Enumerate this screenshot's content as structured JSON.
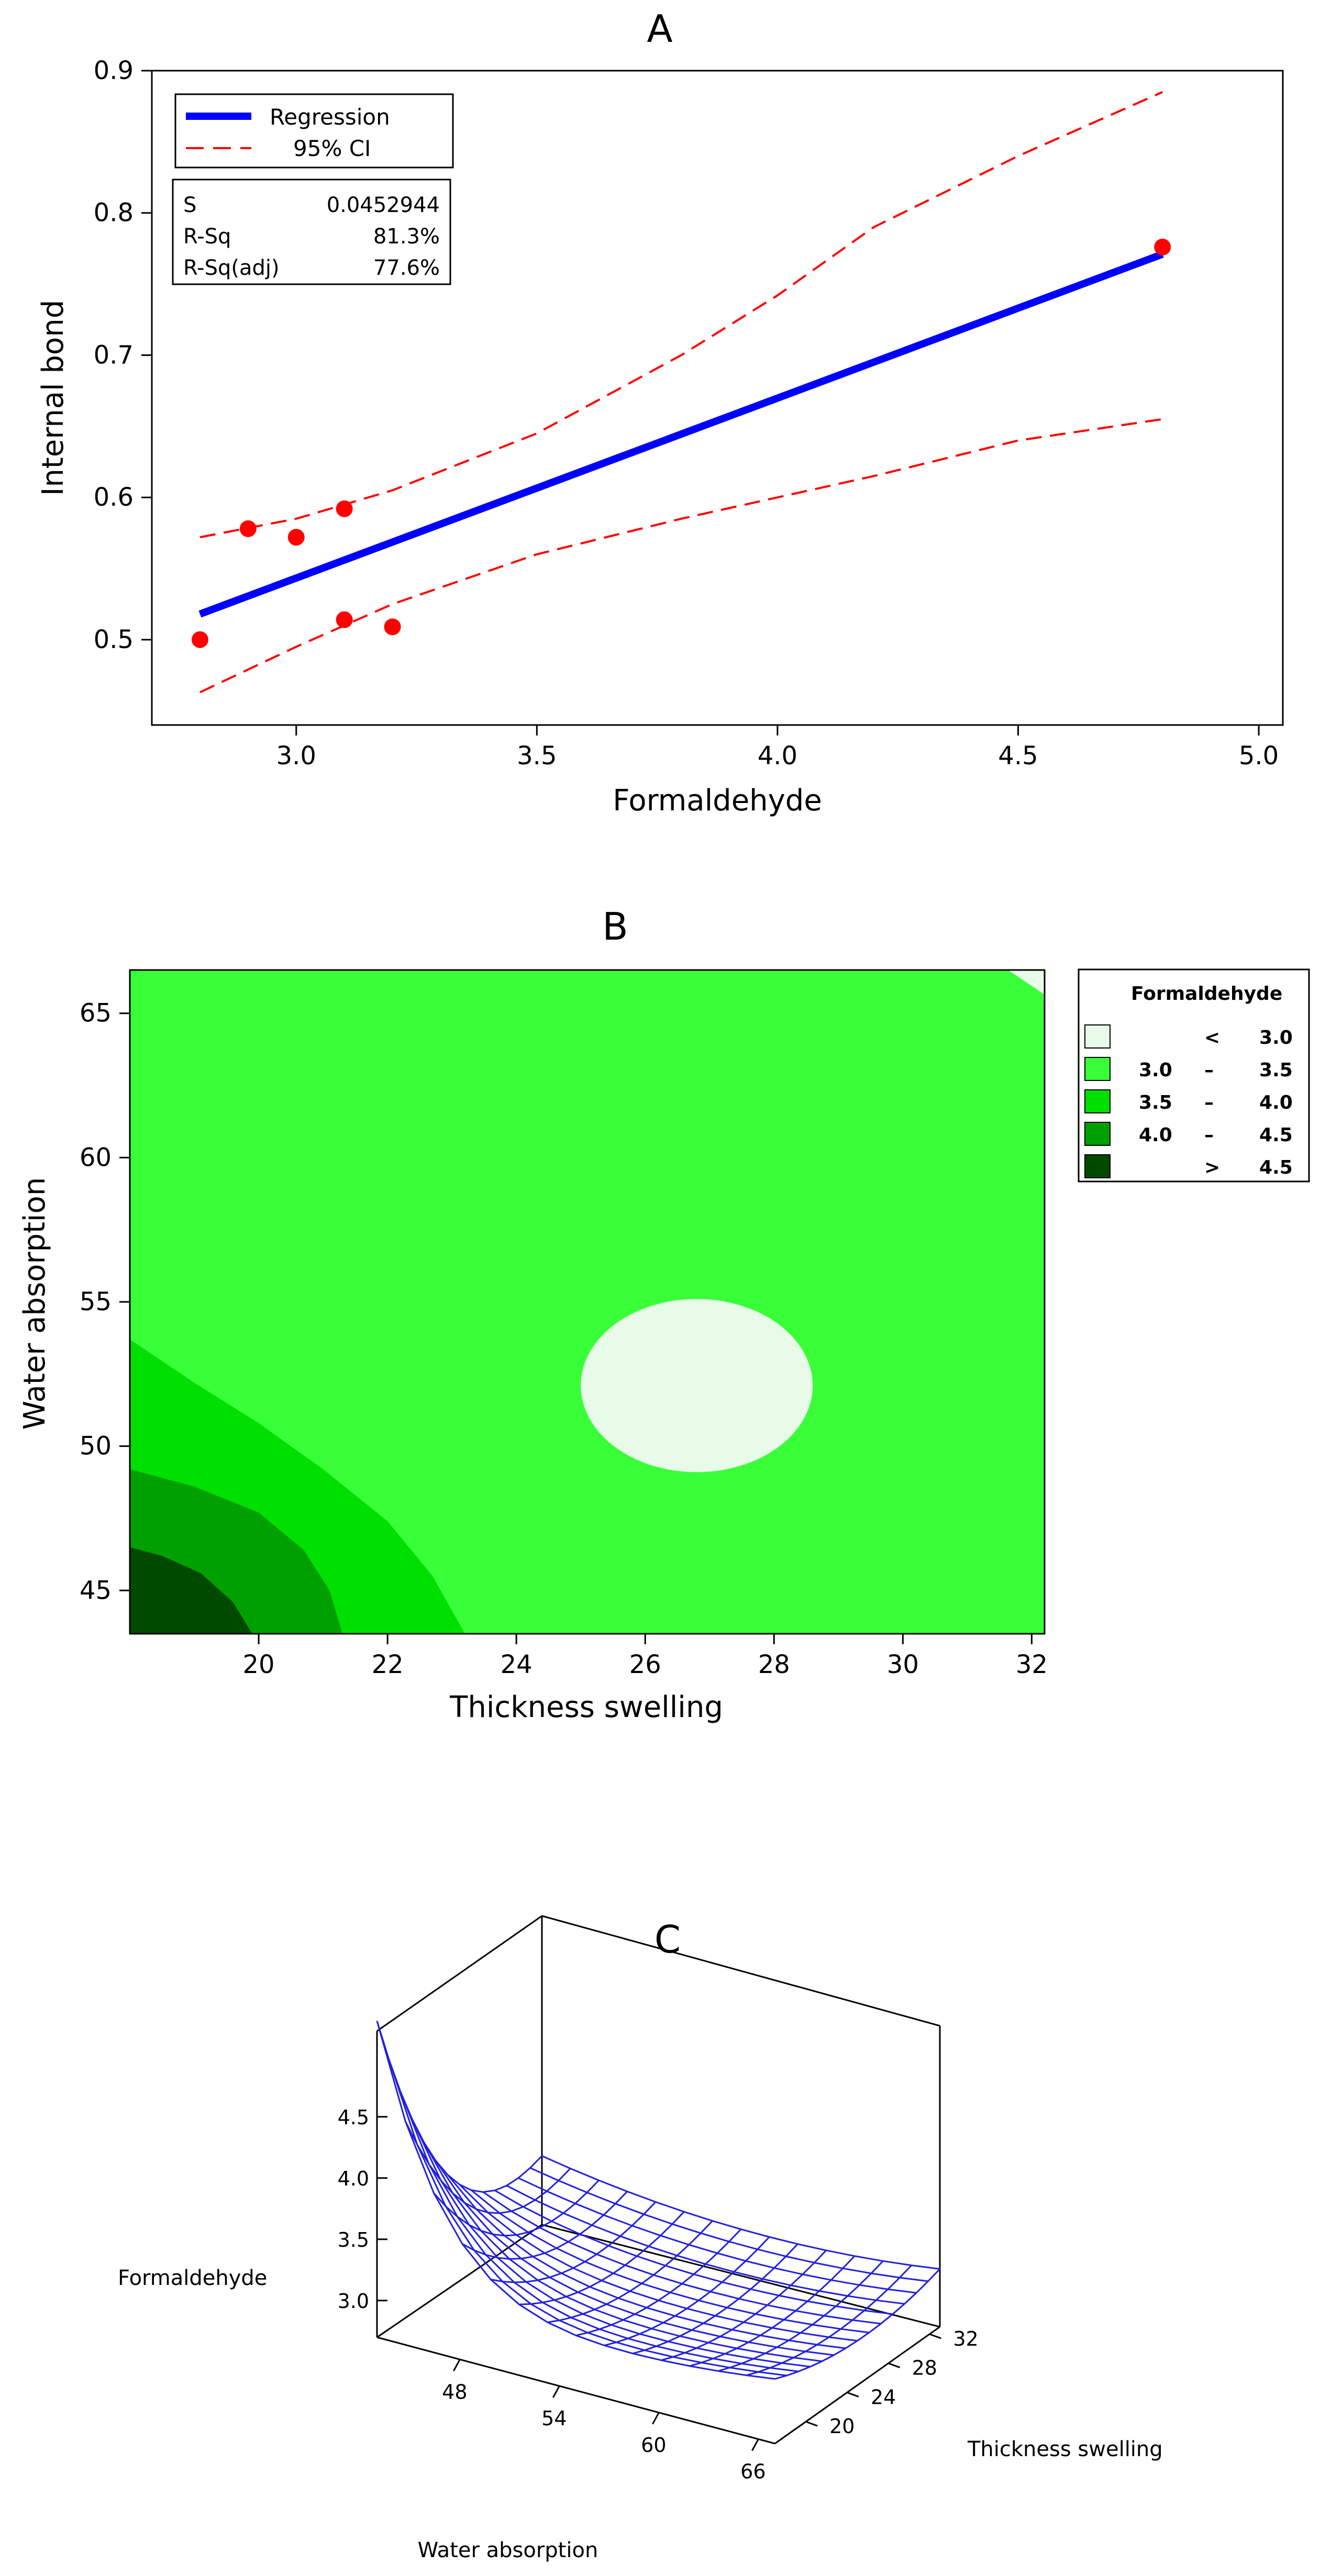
{
  "chart_data": [
    {
      "panel": "A",
      "type": "scatter",
      "title": "A",
      "xlabel": "Formaldehyde",
      "ylabel": "Internal bond",
      "xlim": [
        2.7,
        5.05
      ],
      "ylim": [
        0.44,
        0.9
      ],
      "xticks": [
        3.0,
        3.5,
        4.0,
        4.5,
        5.0
      ],
      "yticks": [
        0.5,
        0.6,
        0.7,
        0.8,
        0.9
      ],
      "points": [
        {
          "x": 2.8,
          "y": 0.5
        },
        {
          "x": 2.9,
          "y": 0.578
        },
        {
          "x": 3.0,
          "y": 0.572
        },
        {
          "x": 3.1,
          "y": 0.592
        },
        {
          "x": 3.1,
          "y": 0.514
        },
        {
          "x": 3.2,
          "y": 0.509
        },
        {
          "x": 4.8,
          "y": 0.776
        }
      ],
      "regression": {
        "x": [
          2.8,
          4.8
        ],
        "y": [
          0.518,
          0.771
        ]
      },
      "ci_upper": {
        "x": [
          2.8,
          3.0,
          3.2,
          3.5,
          3.8,
          4.0,
          4.2,
          4.5,
          4.8
        ],
        "y": [
          0.572,
          0.585,
          0.605,
          0.645,
          0.7,
          0.742,
          0.79,
          0.84,
          0.885
        ]
      },
      "ci_lower": {
        "x": [
          2.8,
          3.0,
          3.2,
          3.5,
          3.8,
          4.0,
          4.2,
          4.5,
          4.8
        ],
        "y": [
          0.463,
          0.495,
          0.525,
          0.56,
          0.585,
          0.6,
          0.615,
          0.64,
          0.655
        ]
      },
      "legend": {
        "regression_label": "Regression",
        "ci_label": "95% CI",
        "position": "top-left"
      },
      "stats": [
        {
          "label": "S",
          "value": "0.0452944"
        },
        {
          "label": "R-Sq",
          "value": "81.3%"
        },
        {
          "label": "R-Sq(adj)",
          "value": "77.6%"
        }
      ],
      "colors": {
        "points": "#ff0000",
        "regression": "#0000ff",
        "ci": "#ff0000"
      }
    },
    {
      "panel": "B",
      "type": "heatmap",
      "subtype": "contour",
      "title": "B",
      "xlabel": "Thickness swelling",
      "ylabel": "Water absorption",
      "xlim": [
        18,
        32.2
      ],
      "ylim": [
        43.5,
        66.5
      ],
      "xticks": [
        20,
        22,
        24,
        26,
        28,
        30,
        32
      ],
      "yticks": [
        45,
        50,
        55,
        60,
        65
      ],
      "legend": {
        "title": "Formaldehyde",
        "position": "right",
        "entries": [
          {
            "op": "<",
            "lo": "",
            "hi": "3.0",
            "color": "#e8fbe8"
          },
          {
            "op": "–",
            "lo": "3.0",
            "hi": "3.5",
            "color": "#39ff39"
          },
          {
            "op": "–",
            "lo": "3.5",
            "hi": "4.0",
            "color": "#00e000"
          },
          {
            "op": "–",
            "lo": "4.0",
            "hi": "4.5",
            "color": "#00a000"
          },
          {
            "op": ">",
            "lo": "",
            "hi": "4.5",
            "color": "#004a00"
          }
        ]
      },
      "regions": [
        {
          "level": "> 4.5",
          "boundary": [
            [
              18,
              46.5
            ],
            [
              18.5,
              46.2
            ],
            [
              19.1,
              45.6
            ],
            [
              19.6,
              44.6
            ],
            [
              19.9,
              43.5
            ]
          ]
        },
        {
          "level": "4.0 – 4.5",
          "boundary": [
            [
              18,
              49.2
            ],
            [
              19,
              48.6
            ],
            [
              20,
              47.7
            ],
            [
              20.7,
              46.4
            ],
            [
              21.1,
              45
            ],
            [
              21.3,
              43.5
            ]
          ]
        },
        {
          "level": "3.5 – 4.0",
          "boundary": [
            [
              18,
              53.7
            ],
            [
              19,
              52.2
            ],
            [
              20,
              50.8
            ],
            [
              21,
              49.2
            ],
            [
              22,
              47.4
            ],
            [
              22.7,
              45.5
            ],
            [
              23.2,
              43.5
            ]
          ]
        },
        {
          "level": "< 3.0",
          "center": [
            26.8,
            52.1
          ],
          "radius": [
            1.8,
            3.0
          ]
        }
      ]
    },
    {
      "panel": "C",
      "type": "surface",
      "title": "C",
      "xlabel": "Water absorption",
      "ylabel": "Thickness swelling",
      "zlabel": "Formaldehyde",
      "xticks": [
        48,
        54,
        60,
        66
      ],
      "yticks": [
        20,
        24,
        28,
        32
      ],
      "zticks": [
        3.0,
        3.5,
        4.0,
        4.5
      ],
      "xlim": [
        43,
        67
      ],
      "ylim": [
        17,
        33
      ],
      "zlim": [
        2.7,
        5.2
      ],
      "surface_color": "#2020e0"
    }
  ]
}
